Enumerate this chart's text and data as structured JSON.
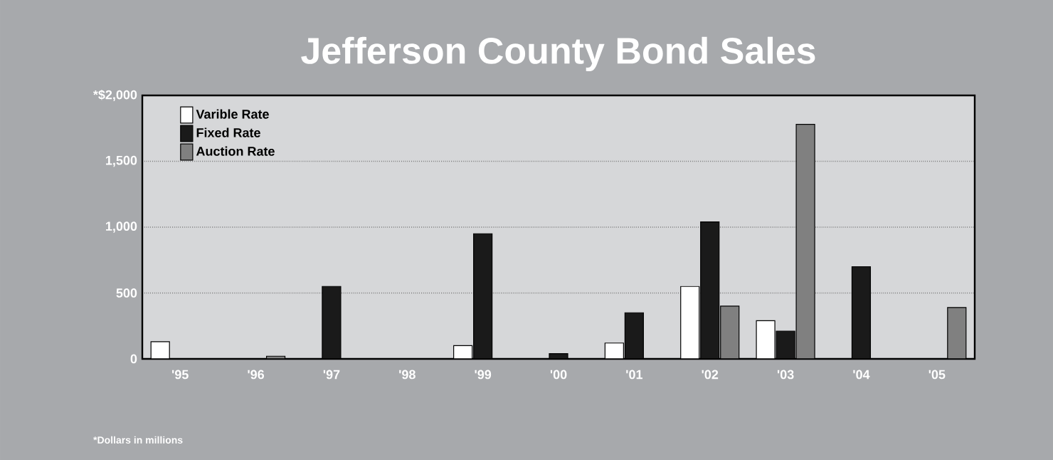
{
  "chart_data": {
    "type": "bar",
    "title": "Jefferson County Bond Sales",
    "categories": [
      "'95",
      "'96",
      "'97",
      "'98",
      "'99",
      "'00",
      "'01",
      "'02",
      "'03",
      "'04",
      "'05"
    ],
    "series": [
      {
        "name": "Varible Rate",
        "color": "#ffffff",
        "values": [
          130,
          null,
          null,
          null,
          100,
          null,
          120,
          550,
          290,
          null,
          null
        ]
      },
      {
        "name": "Fixed Rate",
        "color": "#1a1a1a",
        "values": [
          null,
          null,
          550,
          null,
          950,
          40,
          350,
          1040,
          210,
          700,
          null
        ]
      },
      {
        "name": "Auction Rate",
        "color": "#808080",
        "values": [
          null,
          20,
          null,
          null,
          null,
          null,
          null,
          400,
          1780,
          null,
          390
        ]
      }
    ],
    "ylim": [
      0,
      2000
    ],
    "yticks": [
      0,
      {
        "value": 500,
        "label": "500"
      },
      {
        "value": 1000,
        "label": "1,000"
      },
      {
        "value": 1500,
        "label": "1,500"
      },
      {
        "value": 2000,
        "label": "*$2,000"
      }
    ],
    "grid": "y",
    "legend": "top left",
    "annotations": [
      "*Dollars in millions"
    ]
  }
}
